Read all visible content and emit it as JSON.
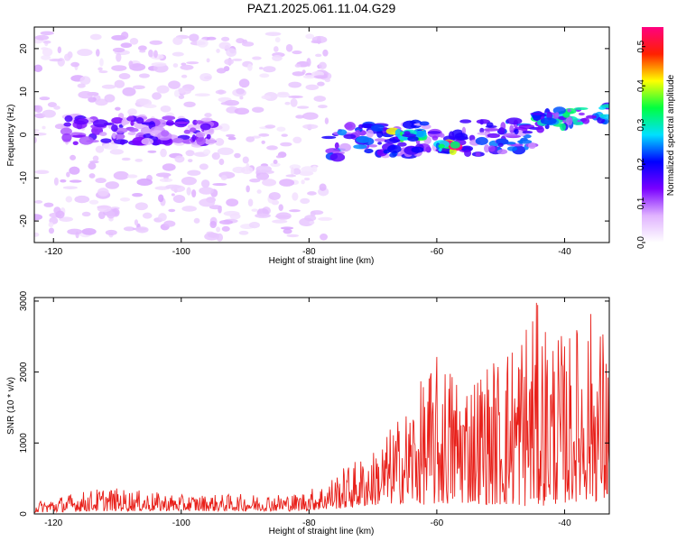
{
  "title": "PAZ1.2025.061.11.04.G29",
  "chart_data": [
    {
      "type": "heatmap",
      "xlabel": "Height of straight line (km)",
      "ylabel": "Frequency (Hz)",
      "xlim": [
        -123,
        -33
      ],
      "ylim": [
        -25,
        25
      ],
      "x_ticks": [
        -120,
        -100,
        -80,
        -60,
        -40
      ],
      "y_ticks": [
        -20,
        -10,
        0,
        10,
        20
      ],
      "colorbar": {
        "label": "Normalized spectral amplitude",
        "range": [
          0,
          0.55
        ],
        "ticks": [
          0.0,
          0.1,
          0.2,
          0.3,
          0.4,
          0.5
        ],
        "tick_labels": [
          "0.0",
          "0.1",
          "0.2",
          "0.3",
          "0.4",
          "0.5"
        ],
        "colors": [
          "#ffffff",
          "#e0b3ff",
          "#7a00ff",
          "#0000ff",
          "#00e0ff",
          "#00ff40",
          "#ffff00",
          "#ff2000",
          "#ff0080"
        ]
      },
      "features": [
        {
          "x": [
            -123,
            -77
          ],
          "freq_center": 0,
          "freq_spread": 24,
          "level": 0.06
        },
        {
          "x": [
            -118,
            -95
          ],
          "freq_center": 1,
          "freq_spread": 3,
          "level": 0.14
        },
        {
          "x": [
            -77,
            -45
          ],
          "freq_center": -2,
          "freq_spread": 4,
          "level": 0.2
        },
        {
          "x": [
            -60,
            -57
          ],
          "freq_center": -3,
          "freq_spread": 1,
          "level": 0.5
        },
        {
          "x": [
            -67,
            -62
          ],
          "freq_center": 0,
          "freq_spread": 1,
          "level": 0.33
        },
        {
          "x": [
            -45,
            -33
          ],
          "freq_center": 3,
          "freq_spread": 2,
          "level": 0.28
        }
      ]
    },
    {
      "type": "line",
      "xlabel": "Height of straight line (km)",
      "ylabel": "SNR (10 * v/v)",
      "xlim": [
        -123,
        -33
      ],
      "ylim": [
        0,
        3050
      ],
      "x_ticks": [
        -120,
        -100,
        -80,
        -60,
        -40
      ],
      "y_ticks": [
        0,
        1000,
        2000,
        3000
      ],
      "color": "#e8201a",
      "envelope": [
        {
          "x": -123,
          "low": 20,
          "high": 180
        },
        {
          "x": -112,
          "low": 40,
          "high": 380
        },
        {
          "x": -100,
          "low": 40,
          "high": 270
        },
        {
          "x": -82,
          "low": 40,
          "high": 290
        },
        {
          "x": -78,
          "low": 60,
          "high": 420
        },
        {
          "x": -74,
          "low": 80,
          "high": 700
        },
        {
          "x": -70,
          "low": 120,
          "high": 900
        },
        {
          "x": -65,
          "low": 150,
          "high": 1500
        },
        {
          "x": -60,
          "low": 120,
          "high": 2250
        },
        {
          "x": -55,
          "low": 150,
          "high": 2050
        },
        {
          "x": -50,
          "low": 120,
          "high": 2300
        },
        {
          "x": -45,
          "low": 100,
          "high": 3050
        },
        {
          "x": -40,
          "low": 150,
          "high": 2500
        },
        {
          "x": -36,
          "low": 200,
          "high": 2920
        },
        {
          "x": -33,
          "low": 120,
          "high": 2600
        }
      ]
    }
  ]
}
